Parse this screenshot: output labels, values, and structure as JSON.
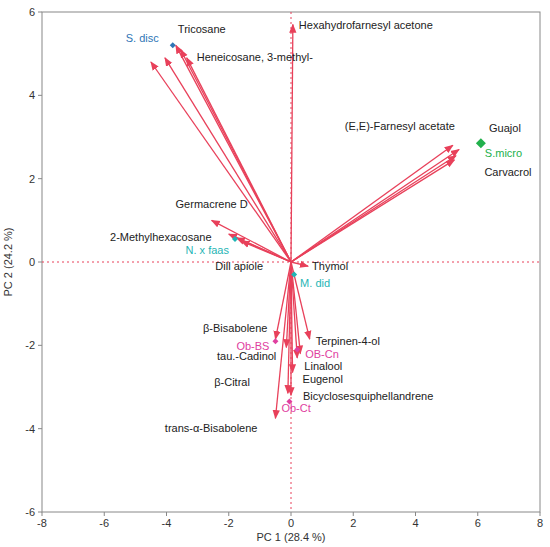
{
  "chart_data": {
    "type": "biplot",
    "x_label": "PC 1  (28.4 %)",
    "y_label": "PC 2  (24.2 %)",
    "xlim": [
      -8,
      8
    ],
    "ylim": [
      -6,
      6
    ],
    "xticks": [
      -8,
      -6,
      -4,
      -2,
      0,
      2,
      4,
      6,
      8
    ],
    "yticks": [
      -6,
      -4,
      -2,
      0,
      2,
      4,
      6
    ],
    "grid": false,
    "loadings": {
      "color": "#e8405a",
      "labels": [
        "Hexahydrofarnesyl acetone",
        "Tricosane",
        null,
        "Heneicosane, 3-methyl-",
        null,
        null,
        "(E,E)-Farnesyl acetate",
        "Guajol",
        null,
        "Carvacrol",
        "Germacrene D",
        null,
        "2-Methylhexacosane",
        "Dill apiole",
        "Thymol",
        "β-Bisabolene",
        "tau.-Cadinol",
        "Terpinen-4-ol",
        "Linalool",
        null,
        "Eugenol",
        "Bicyclosesquiphellandrene",
        "β-Citral",
        "trans-α-Bisabolene"
      ],
      "x": [
        0.06,
        -3.7,
        -3.55,
        -3.35,
        -4.05,
        -4.5,
        5.2,
        5.4,
        5.3,
        5.25,
        -2.55,
        -2.0,
        -1.75,
        -1.6,
        0.55,
        -0.5,
        -0.15,
        0.6,
        0.3,
        0.2,
        0.05,
        0.0,
        -0.1,
        -0.5
      ],
      "y": [
        5.7,
        5.2,
        5.1,
        4.9,
        4.9,
        4.8,
        2.8,
        2.7,
        2.55,
        2.45,
        1.0,
        0.67,
        0.58,
        0.5,
        -0.1,
        -1.85,
        -2.05,
        -1.85,
        -2.2,
        -2.3,
        -2.65,
        -3.2,
        -3.15,
        -3.75
      ]
    },
    "scores": {
      "labels": [
        "S. disc",
        "S.micro",
        "N. x faas",
        "M. did",
        "Ob-BS",
        "OB-Cn",
        "Ob-Ct"
      ],
      "x": [
        -3.8,
        6.1,
        -1.8,
        0.1,
        -0.5,
        0.2,
        -0.05
      ],
      "y": [
        5.2,
        2.85,
        0.55,
        -0.3,
        -1.9,
        -2.1,
        -3.35
      ],
      "colors": [
        "#2e75b6",
        "#22b14c",
        "#1fb5b5",
        "#1fb5b5",
        "#e040a0",
        "#e040a0",
        "#e040a0"
      ],
      "marker": "diamond"
    }
  }
}
